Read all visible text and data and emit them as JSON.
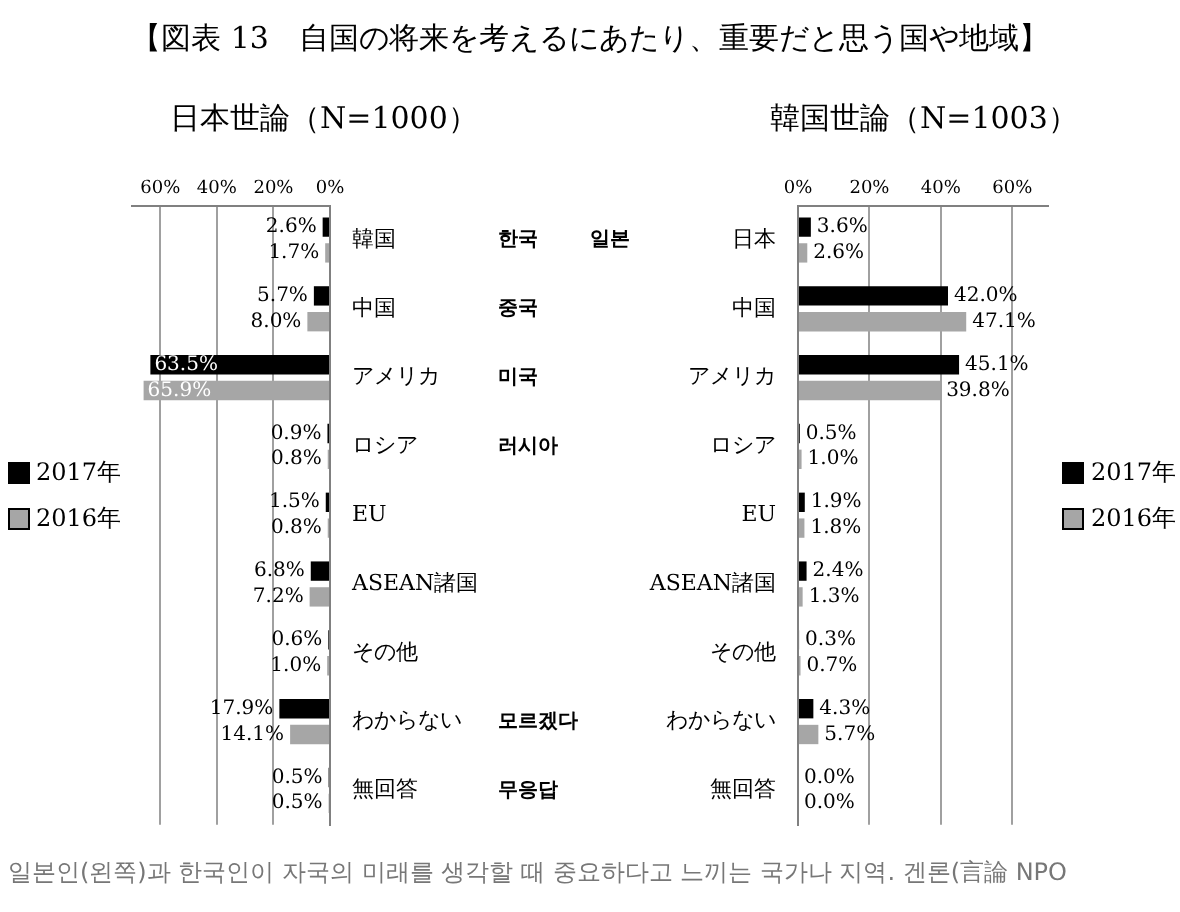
{
  "chart_data": [
    {
      "type": "bar",
      "orientation": "horizontal",
      "title": "【図表 13　自国の将来を考えるにあたり、重要だと思う国や地域】",
      "subtitle": "日本世論（N=1000）",
      "categories": [
        "韓国",
        "中国",
        "アメリカ",
        "ロシア",
        "EU",
        "ASEAN諸国",
        "その他",
        "わからない",
        "無回答"
      ],
      "series": [
        {
          "name": "2017年",
          "color": "#000000",
          "values": [
            2.6,
            5.7,
            63.5,
            0.9,
            1.5,
            6.8,
            0.6,
            17.9,
            0.5
          ],
          "value_labels": [
            "2.6%",
            "5.7%",
            "63.5%",
            "0.9%",
            "1.5%",
            "6.8%",
            "0.6%",
            "17.9%",
            "0.5%"
          ]
        },
        {
          "name": "2016年",
          "color": "#a6a6a6",
          "values": [
            1.7,
            8.0,
            65.9,
            0.8,
            0.8,
            7.2,
            1.0,
            14.1,
            0.5
          ],
          "value_labels": [
            "1.7%",
            "8.0%",
            "65.9%",
            "0.8%",
            "0.8%",
            "7.2%",
            "1.0%",
            "14.1%",
            "0.5%"
          ]
        }
      ],
      "xlim": [
        70,
        0
      ],
      "xticks": [
        {
          "value": 60,
          "label": "60%"
        },
        {
          "value": 40,
          "label": "40%"
        },
        {
          "value": 20,
          "label": "20%"
        },
        {
          "value": 0,
          "label": "0%"
        }
      ],
      "grid": "x",
      "legend": "left",
      "y2_categories": [
        "한국",
        "중국",
        "미국",
        "러시아",
        null,
        null,
        null,
        "모르겠다",
        "무응답"
      ]
    },
    {
      "type": "bar",
      "orientation": "horizontal",
      "subtitle": "韓国世論（N=1003）",
      "categories": [
        "日本",
        "中国",
        "アメリカ",
        "ロシア",
        "EU",
        "ASEAN諸国",
        "その他",
        "わからない",
        "無回答"
      ],
      "series": [
        {
          "name": "2017年",
          "color": "#000000",
          "values": [
            3.6,
            42.0,
            45.1,
            0.5,
            1.9,
            2.4,
            0.3,
            4.3,
            0.0
          ],
          "value_labels": [
            "3.6%",
            "42.0%",
            "45.1%",
            "0.5%",
            "1.9%",
            "2.4%",
            "0.3%",
            "4.3%",
            "0.0%"
          ]
        },
        {
          "name": "2016年",
          "color": "#a6a6a6",
          "values": [
            2.6,
            47.1,
            39.8,
            1.0,
            1.8,
            1.3,
            0.7,
            5.7,
            0.0
          ],
          "value_labels": [
            "2.6%",
            "47.1%",
            "39.8%",
            "1.0%",
            "1.8%",
            "1.3%",
            "0.7%",
            "5.7%",
            "0.0%"
          ]
        }
      ],
      "xlim": [
        0,
        70
      ],
      "xticks": [
        {
          "value": 0,
          "label": "0%"
        },
        {
          "value": 20,
          "label": "20%"
        },
        {
          "value": 40,
          "label": "40%"
        },
        {
          "value": 60,
          "label": "60%"
        }
      ],
      "grid": "x",
      "legend": "right",
      "y2_categories": [
        "일본",
        null,
        null,
        null,
        null,
        null,
        null,
        null,
        null
      ],
      "annotations": [
        "일본인(왼쪽)과 한국인이 자국의 미래를 생각할 때 중요하다고 느끼는 국가나 지역. 겐론(言論 NPO"
      ]
    }
  ]
}
